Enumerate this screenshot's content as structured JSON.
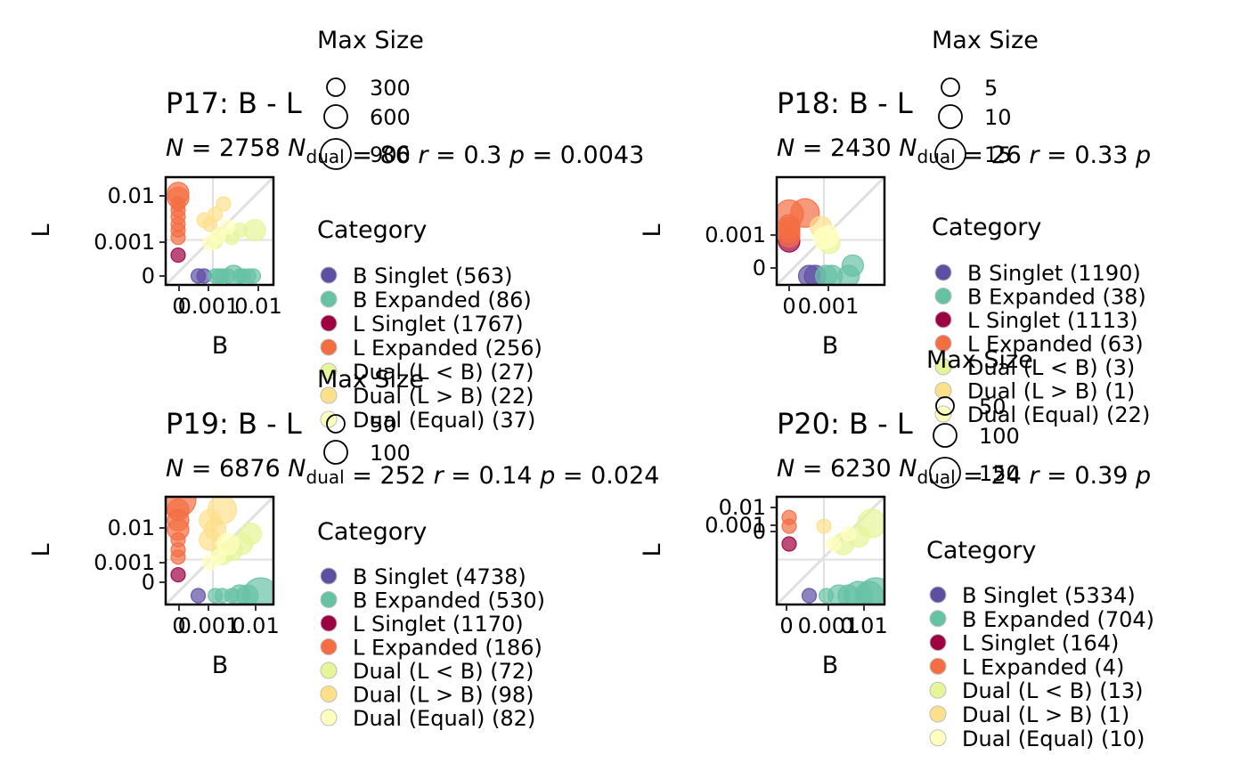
{
  "legend_titles": {
    "size": "Max Size",
    "category": "Category"
  },
  "chart_data": [
    {
      "type": "scatter",
      "title": "P17: B - L",
      "stats": {
        "N": "2758",
        "N_dual": "86",
        "r": "0.3",
        "p": "0.0043"
      },
      "xlabel": "B",
      "ylabel": "L",
      "xticks": [
        "0",
        "0.001",
        "0.01"
      ],
      "yticks": [
        "0",
        "0.001",
        "0.01"
      ],
      "scale": "pseudo-log",
      "size_legend": [
        "300",
        "600",
        "900"
      ],
      "categories": [
        {
          "label": "B Singlet (563)",
          "color": "#5E4FA2"
        },
        {
          "label": "B Expanded (86)",
          "color": "#66C2A5"
        },
        {
          "label": "L Singlet (1767)",
          "color": "#9E0142"
        },
        {
          "label": "L Expanded (256)",
          "color": "#F46D43"
        },
        {
          "label": "Dual (L < B) (27)",
          "color": "#E6F598"
        },
        {
          "label": "Dual (L > B) (22)",
          "color": "#FEE08B"
        },
        {
          "label": "Dual (Equal) (37)",
          "color": "#FFFFBF"
        }
      ],
      "points": [
        {
          "c": 0,
          "x": 0.0003,
          "y": 0,
          "s": 1
        },
        {
          "c": 0,
          "x": 0.0005,
          "y": 0,
          "s": 1
        },
        {
          "c": 1,
          "x": 0.0012,
          "y": 0,
          "s": 1
        },
        {
          "c": 1,
          "x": 0.0016,
          "y": 0,
          "s": 1
        },
        {
          "c": 1,
          "x": 0.002,
          "y": 0,
          "s": 1
        },
        {
          "c": 1,
          "x": 0.003,
          "y": 0,
          "s": 1
        },
        {
          "c": 1,
          "x": 0.0045,
          "y": 0,
          "s": 2
        },
        {
          "c": 1,
          "x": 0.007,
          "y": 0,
          "s": 1
        },
        {
          "c": 1,
          "x": 0.009,
          "y": 0,
          "s": 1
        },
        {
          "c": 1,
          "x": 0.013,
          "y": 0,
          "s": 1
        },
        {
          "c": 1,
          "x": 0.018,
          "y": 0,
          "s": 1
        },
        {
          "c": 2,
          "x": 0,
          "y": 0.0003,
          "s": 1
        },
        {
          "c": 3,
          "x": 0,
          "y": 0.0012,
          "s": 1
        },
        {
          "c": 3,
          "x": 0,
          "y": 0.002,
          "s": 1
        },
        {
          "c": 3,
          "x": 0,
          "y": 0.003,
          "s": 1
        },
        {
          "c": 3,
          "x": 0,
          "y": 0.005,
          "s": 1
        },
        {
          "c": 3,
          "x": 0,
          "y": 0.008,
          "s": 1
        },
        {
          "c": 3,
          "x": 0,
          "y": 0.012,
          "s": 1
        },
        {
          "c": 3,
          "x": 0,
          "y": 0.018,
          "s": 2
        },
        {
          "c": 3,
          "x": 0,
          "y": 0.025,
          "s": 2
        },
        {
          "c": 4,
          "x": 0.0012,
          "y": 0.0009,
          "s": 1
        },
        {
          "c": 4,
          "x": 0.002,
          "y": 0.0015,
          "s": 1
        },
        {
          "c": 4,
          "x": 0.004,
          "y": 0.0012,
          "s": 1
        },
        {
          "c": 4,
          "x": 0.007,
          "y": 0.002,
          "s": 1
        },
        {
          "c": 4,
          "x": 0.02,
          "y": 0.002,
          "s": 2
        },
        {
          "c": 5,
          "x": 0.0008,
          "y": 0.003,
          "s": 1
        },
        {
          "c": 5,
          "x": 0.0012,
          "y": 0.006,
          "s": 1
        },
        {
          "c": 5,
          "x": 0.0022,
          "y": 0.012,
          "s": 1
        },
        {
          "c": 5,
          "x": 0.0005,
          "y": 0.004,
          "s": 1
        },
        {
          "c": 6,
          "x": 0.0008,
          "y": 0.0008,
          "s": 1
        },
        {
          "c": 6,
          "x": 0.0015,
          "y": 0.0013,
          "s": 1
        },
        {
          "c": 6,
          "x": 0.003,
          "y": 0.0025,
          "s": 1
        }
      ]
    },
    {
      "type": "scatter",
      "title": "P18: B - L",
      "stats": {
        "N": "2430",
        "N_dual": "26",
        "r": "0.33",
        "p": ""
      },
      "xlabel": "B",
      "ylabel": "L",
      "xticks": [
        "0",
        "0.001"
      ],
      "yticks": [
        "0",
        "0.001"
      ],
      "scale": "pseudo-log",
      "size_legend": [
        "5",
        "10",
        "15"
      ],
      "categories": [
        {
          "label": "B Singlet (1190)",
          "color": "#5E4FA2"
        },
        {
          "label": "B Expanded (38)",
          "color": "#66C2A5"
        },
        {
          "label": "L Singlet (1113)",
          "color": "#9E0142"
        },
        {
          "label": "L Expanded (63)",
          "color": "#F46D43"
        },
        {
          "label": "Dual (L < B) (3)",
          "color": "#E6F598"
        },
        {
          "label": "Dual (L > B) (1)",
          "color": "#FEE08B"
        },
        {
          "label": "Dual (Equal) (22)",
          "color": "#FFFFBF"
        }
      ],
      "points": [
        {
          "c": 0,
          "x": 0.0003,
          "y": 0,
          "s": 2
        },
        {
          "c": 0,
          "x": 0.0005,
          "y": 0,
          "s": 2
        },
        {
          "c": 1,
          "x": 0.0012,
          "y": 0,
          "s": 2
        },
        {
          "c": 1,
          "x": 0.0018,
          "y": 0,
          "s": 2
        },
        {
          "c": 1,
          "x": 0.006,
          "y": 0,
          "s": 2
        },
        {
          "c": 1,
          "x": 0.008,
          "y": 0.0001,
          "s": 2
        },
        {
          "c": 2,
          "x": 0,
          "y": 0.0009,
          "s": 2
        },
        {
          "c": 3,
          "x": 0,
          "y": 0.0013,
          "s": 2
        },
        {
          "c": 3,
          "x": 0,
          "y": 0.0018,
          "s": 2
        },
        {
          "c": 3,
          "x": 0,
          "y": 0.0023,
          "s": 2
        },
        {
          "c": 3,
          "x": 0,
          "y": 0.0028,
          "s": 2
        },
        {
          "c": 3,
          "x": 0,
          "y": 0.006,
          "s": 3
        },
        {
          "c": 3,
          "x": 0.0002,
          "y": 0.0065,
          "s": 3
        },
        {
          "c": 4,
          "x": 0.0015,
          "y": 0.0008,
          "s": 2
        },
        {
          "c": 5,
          "x": 0.0008,
          "y": 0.0025,
          "s": 2
        },
        {
          "c": 6,
          "x": 0.001,
          "y": 0.0011,
          "s": 2
        },
        {
          "c": 6,
          "x": 0.0014,
          "y": 0.0013,
          "s": 2
        }
      ]
    },
    {
      "type": "scatter",
      "title": "P19: B - L",
      "stats": {
        "N": "6876",
        "N_dual": "252",
        "r": "0.14",
        "p": "0.024"
      },
      "xlabel": "B",
      "ylabel": "L",
      "xticks": [
        "0",
        "0.001",
        "0.01"
      ],
      "yticks": [
        "0",
        "0.001",
        "0.01"
      ],
      "scale": "pseudo-log",
      "size_legend": [
        "50",
        "100"
      ],
      "categories": [
        {
          "label": "B Singlet (4738)",
          "color": "#5E4FA2"
        },
        {
          "label": "B Expanded (530)",
          "color": "#66C2A5"
        },
        {
          "label": "L Singlet (1170)",
          "color": "#9E0142"
        },
        {
          "label": "L Expanded (186)",
          "color": "#F46D43"
        },
        {
          "label": "Dual (L < B) (72)",
          "color": "#E6F598"
        },
        {
          "label": "Dual (L > B) (98)",
          "color": "#FEE08B"
        },
        {
          "label": "Dual (Equal) (82)",
          "color": "#FFFFBF"
        }
      ],
      "points": [
        {
          "c": 0,
          "x": 0.0003,
          "y": 0,
          "s": 1
        },
        {
          "c": 1,
          "x": 0.0012,
          "y": 0,
          "s": 1
        },
        {
          "c": 1,
          "x": 0.002,
          "y": 0,
          "s": 1
        },
        {
          "c": 1,
          "x": 0.004,
          "y": 0,
          "s": 1
        },
        {
          "c": 1,
          "x": 0.007,
          "y": 0,
          "s": 2
        },
        {
          "c": 1,
          "x": 0.012,
          "y": 0,
          "s": 2
        },
        {
          "c": 1,
          "x": 0.03,
          "y": 0,
          "s": 4
        },
        {
          "c": 2,
          "x": 0,
          "y": 0.0003,
          "s": 1
        },
        {
          "c": 3,
          "x": 0,
          "y": 0.0012,
          "s": 1
        },
        {
          "c": 3,
          "x": 0,
          "y": 0.002,
          "s": 1
        },
        {
          "c": 3,
          "x": 0,
          "y": 0.004,
          "s": 1
        },
        {
          "c": 3,
          "x": 0,
          "y": 0.008,
          "s": 2
        },
        {
          "c": 3,
          "x": 0,
          "y": 0.015,
          "s": 2
        },
        {
          "c": 3,
          "x": 0,
          "y": 0.03,
          "s": 2
        },
        {
          "c": 3,
          "x": 0,
          "y": 0.06,
          "s": 4
        },
        {
          "c": 4,
          "x": 0.002,
          "y": 0.0015,
          "s": 2
        },
        {
          "c": 4,
          "x": 0.004,
          "y": 0.002,
          "s": 2
        },
        {
          "c": 4,
          "x": 0.008,
          "y": 0.003,
          "s": 2
        },
        {
          "c": 4,
          "x": 0.015,
          "y": 0.006,
          "s": 2
        },
        {
          "c": 5,
          "x": 0.0008,
          "y": 0.004,
          "s": 2
        },
        {
          "c": 5,
          "x": 0.0012,
          "y": 0.008,
          "s": 2
        },
        {
          "c": 5,
          "x": 0.002,
          "y": 0.03,
          "s": 3
        },
        {
          "c": 5,
          "x": 0.0008,
          "y": 0.015,
          "s": 2
        },
        {
          "c": 6,
          "x": 0.0008,
          "y": 0.0008,
          "s": 1
        },
        {
          "c": 6,
          "x": 0.0015,
          "y": 0.0012,
          "s": 1
        },
        {
          "c": 6,
          "x": 0.003,
          "y": 0.003,
          "s": 2
        }
      ]
    },
    {
      "type": "scatter",
      "title": "P20: B - L",
      "stats": {
        "N": "6230",
        "N_dual": "24",
        "r": "0.39",
        "p": ""
      },
      "xlabel": "B",
      "ylabel": "L",
      "xticks": [
        "0",
        "0.001",
        "0.01"
      ],
      "yticks": [
        "0",
        "0.001",
        "0.01"
      ],
      "scale": "pseudo-log",
      "size_legend": [
        "50",
        "100",
        "150"
      ],
      "categories": [
        {
          "label": "B Singlet (5334)",
          "color": "#5E4FA2"
        },
        {
          "label": "B Expanded (704)",
          "color": "#66C2A5"
        },
        {
          "label": "L Singlet (164)",
          "color": "#9E0142"
        },
        {
          "label": "L Expanded (4)",
          "color": "#F46D43"
        },
        {
          "label": "Dual (L < B) (13)",
          "color": "#E6F598"
        },
        {
          "label": "Dual (L > B) (1)",
          "color": "#FEE08B"
        },
        {
          "label": "Dual (Equal) (10)",
          "color": "#FFFFBF"
        }
      ],
      "points": [
        {
          "c": 0,
          "x": 0.0003,
          "y": 0,
          "s": 1
        },
        {
          "c": 1,
          "x": 0.0012,
          "y": 0,
          "s": 1
        },
        {
          "c": 1,
          "x": 0.003,
          "y": 0,
          "s": 2
        },
        {
          "c": 1,
          "x": 0.006,
          "y": 0,
          "s": 2
        },
        {
          "c": 1,
          "x": 0.012,
          "y": 0,
          "s": 3
        },
        {
          "c": 1,
          "x": 0.025,
          "y": 0,
          "s": 3
        },
        {
          "c": 1,
          "x": 0.04,
          "y": 0,
          "s": 4
        },
        {
          "c": 2,
          "x": 0,
          "y": 0.003,
          "s": 1
        },
        {
          "c": 3,
          "x": 0,
          "y": 0.01,
          "s": 1
        },
        {
          "c": 3,
          "x": 0,
          "y": 0.018,
          "s": 1
        },
        {
          "c": 4,
          "x": 0.004,
          "y": 0.003,
          "s": 2
        },
        {
          "c": 4,
          "x": 0.012,
          "y": 0.005,
          "s": 2
        },
        {
          "c": 4,
          "x": 0.03,
          "y": 0.012,
          "s": 3
        },
        {
          "c": 5,
          "x": 0.001,
          "y": 0.01,
          "s": 1
        },
        {
          "c": 6,
          "x": 0.002,
          "y": 0.003,
          "s": 1
        },
        {
          "c": 6,
          "x": 0.006,
          "y": 0.006,
          "s": 1
        }
      ]
    }
  ]
}
